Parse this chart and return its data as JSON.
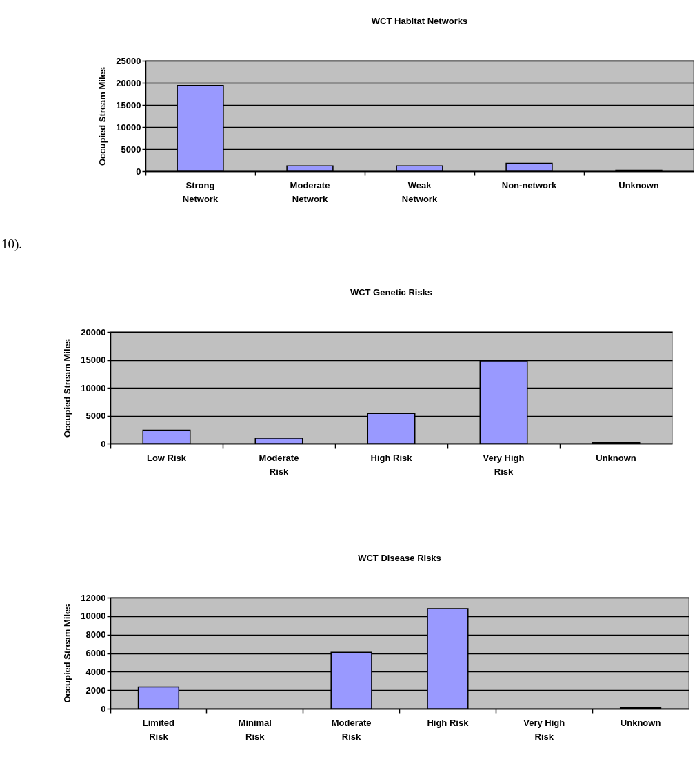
{
  "chart_data": [
    {
      "type": "bar",
      "title": "WCT Habitat Networks",
      "ylabel": "Occupied Stream Miles",
      "categories": [
        "Strong Network",
        "Moderate Network",
        "Weak Network",
        "Non-network",
        "Unknown"
      ],
      "values": [
        19400,
        1200,
        1200,
        1800,
        250
      ],
      "color": "#9999ff",
      "ylim": [
        0,
        25000
      ],
      "yticks": [
        0,
        5000,
        10000,
        15000,
        20000,
        25000
      ],
      "grid": "y",
      "annotations": [
        "10)."
      ]
    },
    {
      "type": "bar",
      "title": "WCT Genetic Risks",
      "ylabel": "Occupied Stream Miles",
      "categories": [
        "Low Risk",
        "Moderate Risk",
        "High Risk",
        "Very High Risk",
        "Unknown"
      ],
      "values": [
        2400,
        1000,
        5400,
        14800,
        150
      ],
      "color": "#9999ff",
      "ylim": [
        0,
        20000
      ],
      "yticks": [
        0,
        5000,
        10000,
        15000,
        20000
      ],
      "grid": "y"
    },
    {
      "type": "bar",
      "title": "WCT Disease Risks",
      "ylabel": "Occupied Stream Miles",
      "categories": [
        "Limited Risk",
        "Minimal Risk",
        "Moderate Risk",
        "High Risk",
        "Very High Risk",
        "Unknown"
      ],
      "values": [
        2350,
        null,
        6100,
        10800,
        null,
        100
      ],
      "color": "#9999ff",
      "ylim": [
        0,
        12000
      ],
      "yticks": [
        0,
        2000,
        4000,
        6000,
        8000,
        10000,
        12000
      ],
      "grid": "y"
    }
  ]
}
